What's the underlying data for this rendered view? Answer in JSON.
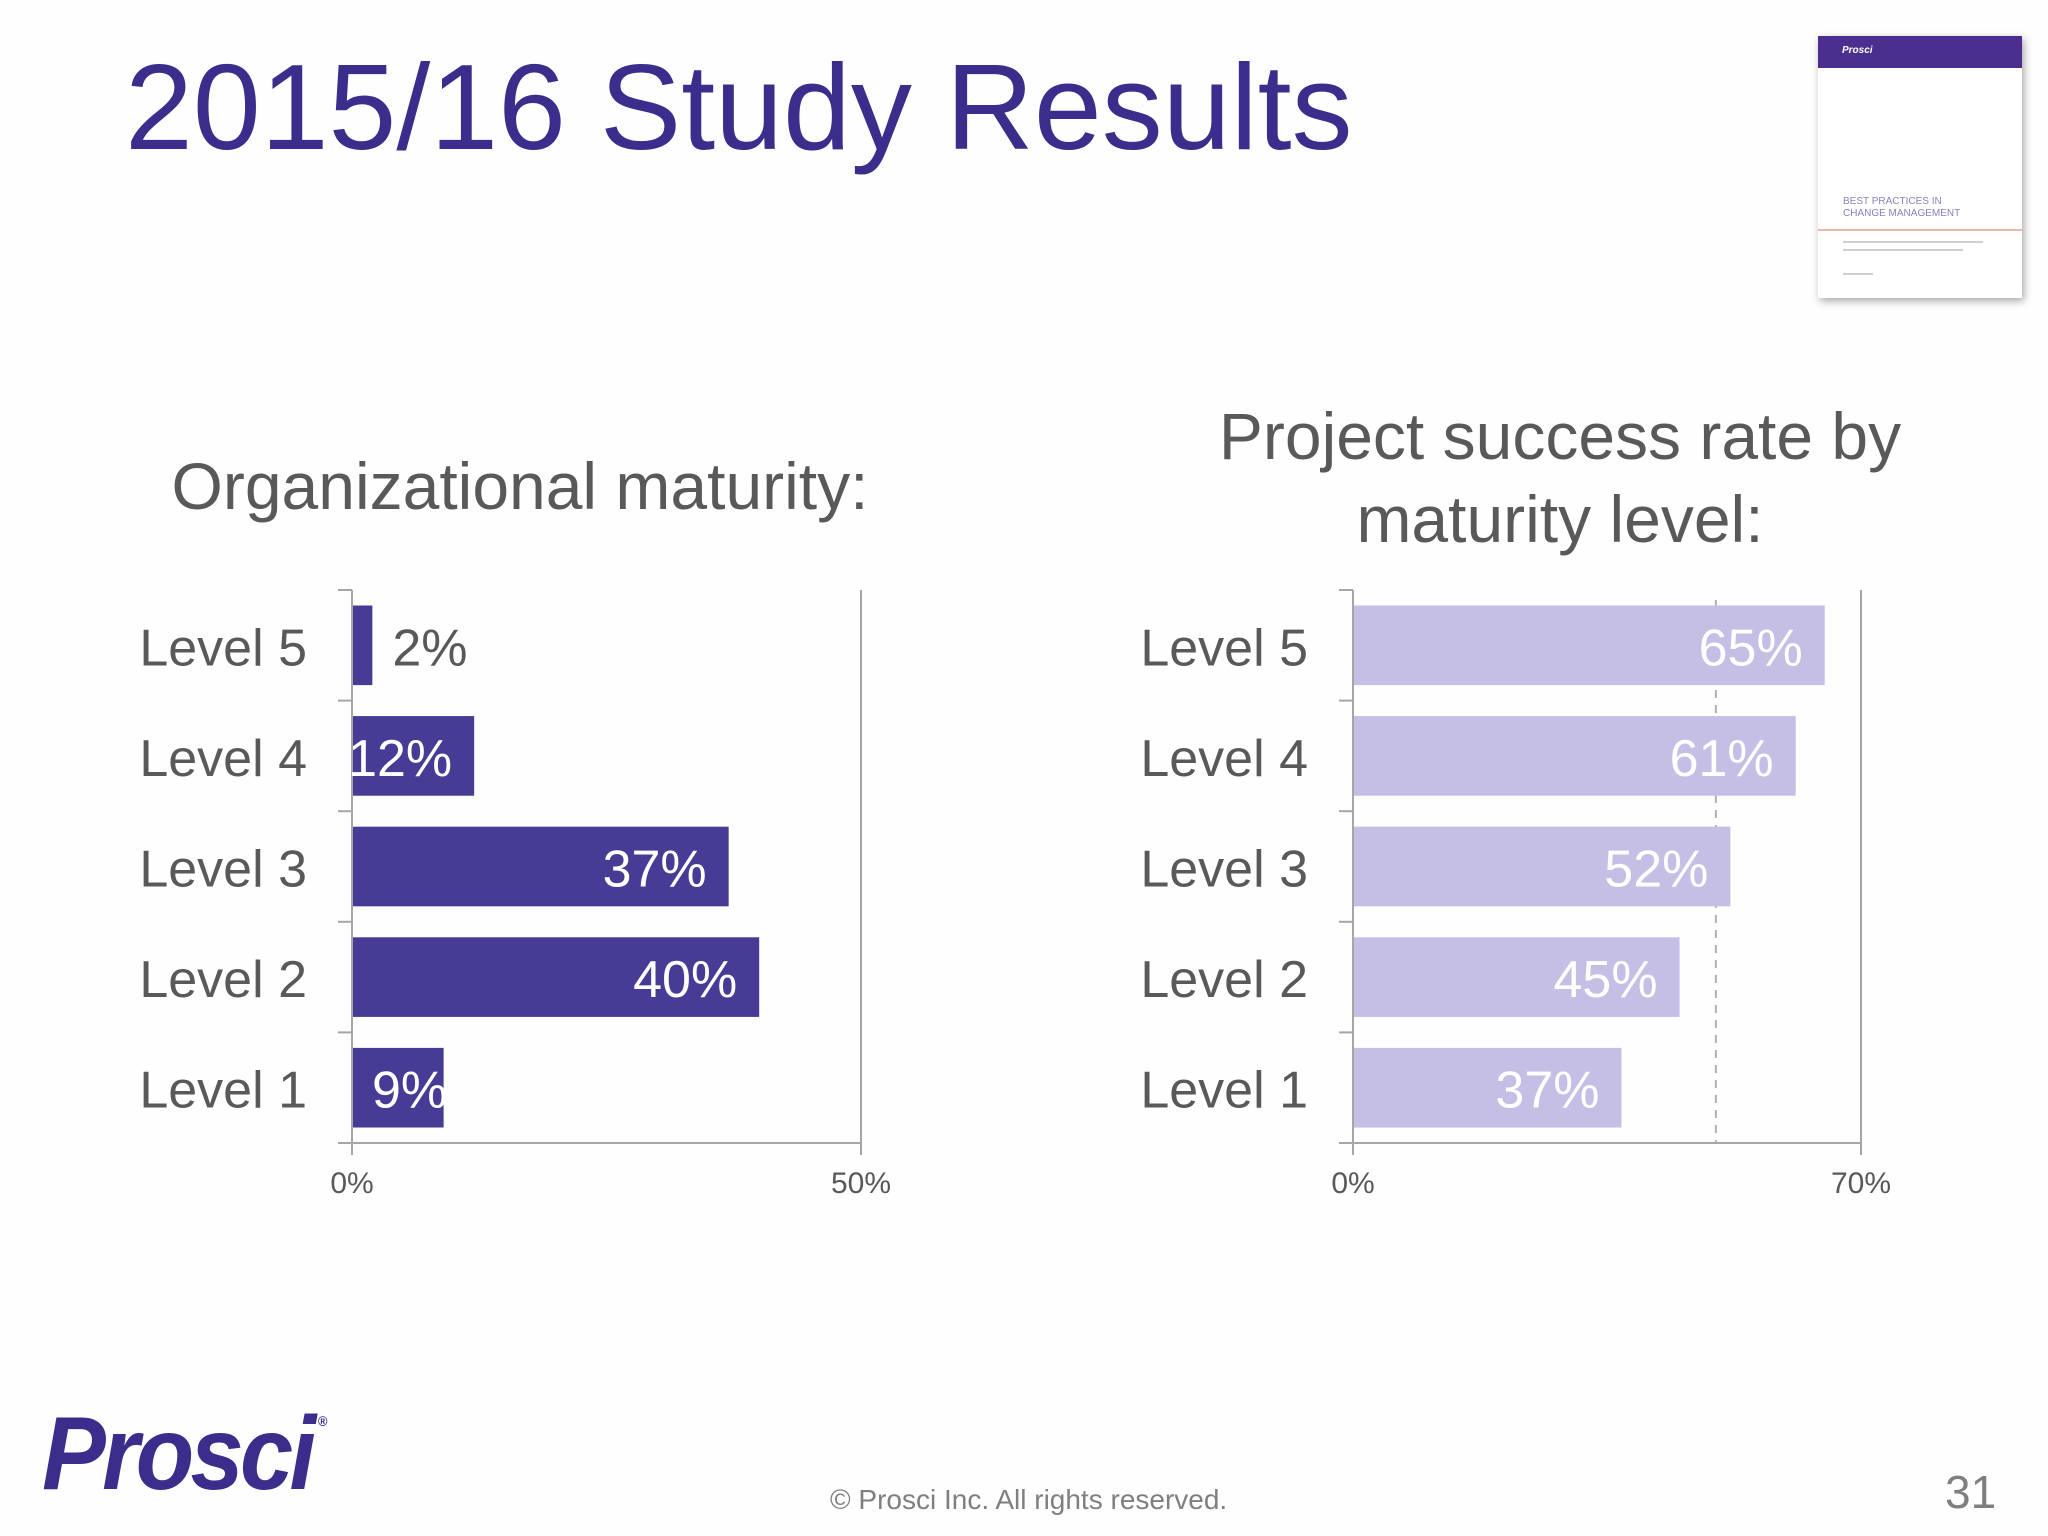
{
  "slide": {
    "title": "2015/16 Study Results",
    "copyright": "© Prosci Inc. All rights reserved.",
    "page_number": "31",
    "logo_text": "Prosci",
    "logo_mark": "®",
    "thumbnail": {
      "brand": "Prosci",
      "title_line1": "BEST PRACTICES IN",
      "title_line2": "CHANGE MANAGEMENT"
    }
  },
  "colors": {
    "title": "#3a2d8c",
    "left_bar": "#463c96",
    "right_bar": "#c5bee5",
    "heading": "#595959",
    "axis": "#a6a6a6"
  },
  "chart_data": [
    {
      "type": "bar",
      "orientation": "horizontal",
      "title": "Organizational maturity:",
      "categories": [
        "Level 5",
        "Level 4",
        "Level 3",
        "Level 2",
        "Level 1"
      ],
      "values": [
        2,
        12,
        37,
        40,
        9
      ],
      "value_labels": [
        "2%",
        "12%",
        "37%",
        "40%",
        "9%"
      ],
      "xlim": [
        0,
        50
      ],
      "x_ticks": [
        "0%",
        "50%"
      ],
      "grid": false
    },
    {
      "type": "bar",
      "orientation": "horizontal",
      "title": "Project success rate by maturity level:",
      "categories": [
        "Level 5",
        "Level 4",
        "Level 3",
        "Level 2",
        "Level 1"
      ],
      "values": [
        65,
        61,
        52,
        45,
        37
      ],
      "value_labels": [
        "65%",
        "61%",
        "52%",
        "45%",
        "37%"
      ],
      "xlim": [
        0,
        70
      ],
      "x_ticks": [
        "0%",
        "70%"
      ],
      "reference_line": 50,
      "grid": false
    }
  ]
}
